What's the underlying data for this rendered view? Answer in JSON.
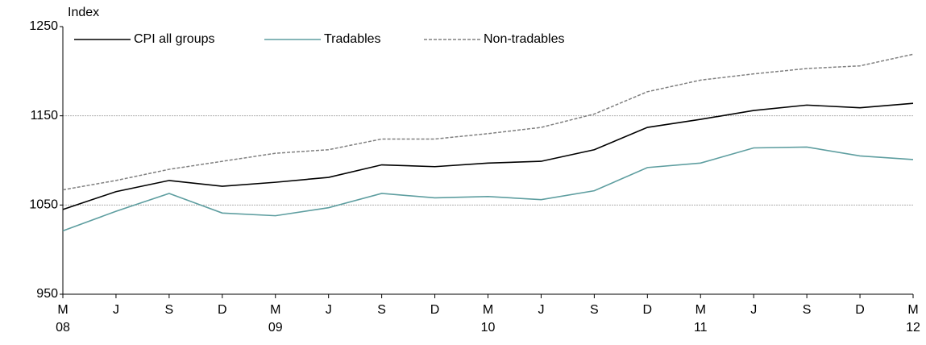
{
  "chart_data": {
    "type": "line",
    "y_label": "Index",
    "categories": [
      "M",
      "J",
      "S",
      "D",
      "M",
      "J",
      "S",
      "D",
      "M",
      "J",
      "S",
      "D",
      "M",
      "J",
      "S",
      "D",
      "M"
    ],
    "category_years": [
      "08",
      null,
      null,
      null,
      "09",
      null,
      null,
      null,
      "10",
      null,
      null,
      null,
      "11",
      null,
      null,
      null,
      "12"
    ],
    "series": [
      {
        "name": "CPI all groups",
        "color": "#000000",
        "dashed": false,
        "values": [
          1045,
          1065,
          1077.5,
          1071,
          1075.5,
          1081,
          1095,
          1093,
          1097,
          1099,
          1112,
          1137,
          1146,
          1156,
          1162,
          1159,
          1164
        ]
      },
      {
        "name": "Tradables",
        "color": "#5e9ea0",
        "dashed": false,
        "values": [
          1021,
          1043,
          1063,
          1041,
          1038,
          1047,
          1063,
          1058,
          1059.5,
          1056,
          1066,
          1092,
          1097,
          1114,
          1115,
          1105,
          1101
        ]
      },
      {
        "name": "Non-tradables",
        "color": "#808080",
        "dashed": true,
        "values": [
          1067,
          1077.5,
          1090,
          1099,
          1108,
          1112,
          1124,
          1124,
          1130,
          1137,
          1152,
          1177,
          1190,
          1197,
          1203,
          1206,
          1219
        ]
      }
    ],
    "ylim": [
      950,
      1250
    ],
    "yticks": [
      950,
      1050,
      1150,
      1250
    ],
    "grid": true,
    "legend": "top-left"
  }
}
